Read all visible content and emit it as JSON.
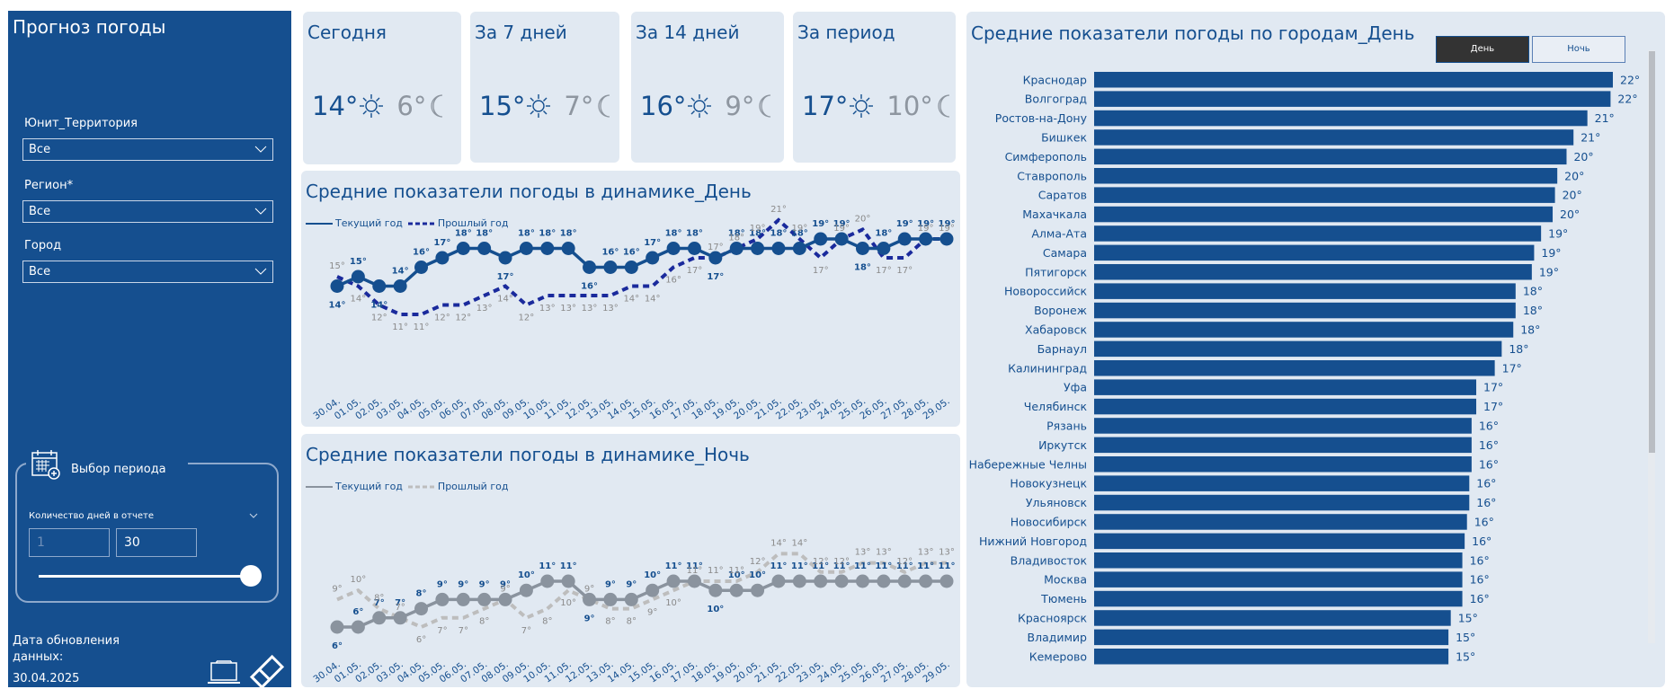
{
  "sidebar": {
    "title": "Прогноз погоды",
    "filters": [
      {
        "label": "Юнит_Территория",
        "value": "Все"
      },
      {
        "label": "Регион*",
        "value": "Все"
      },
      {
        "label": "Город",
        "value": "Все"
      }
    ],
    "period": {
      "title": "Выбор периода",
      "days_label": "Количество дней в отчете",
      "min_value": "1",
      "max_value": "30",
      "slider_position": 1.0
    },
    "update_label": "Дата обновления данных:",
    "update_date": "30.04.2025"
  },
  "kpi_cards": [
    {
      "title": "Сегодня",
      "day": "14°",
      "night": "6°"
    },
    {
      "title": "За 7 дней",
      "day": "15°",
      "night": "7°"
    },
    {
      "title": "За 14 дней",
      "day": "16°",
      "night": "9°"
    },
    {
      "title": "За период",
      "day": "17°",
      "night": "10°"
    }
  ],
  "colors": {
    "primary": "#154f8f",
    "panel": "#e1e9f2",
    "prior_day": "#1a2a9c",
    "night_current": "#8a939e",
    "night_prior": "#bdbdbd",
    "muted_label": "#8a8a8a"
  },
  "city_toggle": {
    "day_label": "День",
    "night_label": "Ночь",
    "active": "День"
  },
  "chart_data": [
    {
      "type": "line",
      "title": "Средние показатели погоды в динамике_День",
      "legend": [
        "Текущий год",
        "Прошлый год"
      ],
      "legend_position": "top-left",
      "x": [
        "30.04.",
        "01.05.",
        "02.05.",
        "03.05.",
        "04.05.",
        "05.05.",
        "06.05.",
        "07.05.",
        "08.05.",
        "09.05.",
        "10.05.",
        "11.05.",
        "12.05.",
        "13.05.",
        "14.05.",
        "15.05.",
        "16.05.",
        "17.05.",
        "18.05.",
        "19.05.",
        "20.05.",
        "21.05.",
        "22.05.",
        "23.05.",
        "24.05.",
        "25.05.",
        "26.05.",
        "27.05.",
        "28.05.",
        "29.05."
      ],
      "series": [
        {
          "name": "Текущий год",
          "style": "solid-markers",
          "values": [
            14,
            15,
            14,
            14,
            16,
            17,
            18,
            18,
            17,
            18,
            18,
            18,
            16,
            16,
            16,
            17,
            18,
            18,
            17,
            18,
            18,
            18,
            18,
            19,
            19,
            18,
            18,
            19,
            19,
            19
          ]
        },
        {
          "name": "Прошлый год",
          "style": "dashed",
          "values": [
            15,
            14,
            12,
            11,
            11,
            12,
            12,
            13,
            14,
            12,
            13,
            13,
            13,
            13,
            14,
            14,
            16,
            17,
            17,
            18,
            19,
            21,
            19,
            17,
            19,
            20,
            17,
            17,
            19,
            19
          ]
        }
      ],
      "unit": "°",
      "grid": false
    },
    {
      "type": "line",
      "title": "Средние показатели погоды в динамике_Ночь",
      "legend": [
        "Текущий год",
        "Прошлый год"
      ],
      "legend_position": "top-left",
      "x": [
        "30.04.",
        "01.05.",
        "02.05.",
        "03.05.",
        "04.05.",
        "05.05.",
        "06.05.",
        "07.05.",
        "08.05.",
        "09.05.",
        "10.05.",
        "11.05.",
        "12.05.",
        "13.05.",
        "14.05.",
        "15.05.",
        "16.05.",
        "17.05.",
        "18.05.",
        "19.05.",
        "20.05.",
        "21.05.",
        "22.05.",
        "23.05.",
        "24.05.",
        "25.05.",
        "26.05.",
        "27.05.",
        "28.05.",
        "29.05."
      ],
      "series": [
        {
          "name": "Текущий год",
          "style": "solid-markers",
          "values": [
            6,
            6,
            7,
            7,
            8,
            9,
            9,
            9,
            9,
            10,
            11,
            11,
            9,
            9,
            9,
            10,
            11,
            11,
            10,
            10,
            10,
            11,
            11,
            11,
            11,
            11,
            11,
            11,
            11,
            11
          ]
        },
        {
          "name": "Прошлый год",
          "style": "dashed",
          "values": [
            9,
            10,
            8,
            7,
            6,
            7,
            7,
            8,
            9,
            7,
            8,
            10,
            9,
            8,
            8,
            9,
            10,
            11,
            11,
            11,
            12,
            14,
            14,
            12,
            12,
            13,
            13,
            12,
            13,
            13
          ]
        }
      ],
      "unit": "°",
      "grid": false
    },
    {
      "type": "bar",
      "orientation": "horizontal",
      "title": "Средние показатели погоды по городам_День",
      "categories": [
        "Краснодар",
        "Волгоград",
        "Ростов-на-Дону",
        "Бишкек",
        "Симферополь",
        "Ставрополь",
        "Саратов",
        "Махачкала",
        "Алма-Ата",
        "Самара",
        "Пятигорск",
        "Новороссийск",
        "Воронеж",
        "Хабаровск",
        "Барнаул",
        "Калининград",
        "Уфа",
        "Челябинск",
        "Рязань",
        "Иркутск",
        "Набережные Челны",
        "Новокузнецк",
        "Ульяновск",
        "Новосибирск",
        "Нижний Новгород",
        "Владивосток",
        "Москва",
        "Тюмень",
        "Красноярск",
        "Владимир",
        "Кемерово"
      ],
      "values": [
        22.4,
        22.3,
        21.3,
        20.7,
        20.4,
        20.0,
        19.9,
        19.8,
        19.3,
        19.0,
        18.9,
        18.2,
        18.2,
        18.1,
        17.6,
        17.3,
        16.5,
        16.5,
        16.3,
        16.3,
        16.3,
        16.2,
        16.2,
        16.1,
        16.0,
        15.9,
        15.9,
        15.9,
        15.4,
        15.3,
        15.3
      ],
      "labels": [
        "22°",
        "22°",
        "21°",
        "21°",
        "20°",
        "20°",
        "20°",
        "20°",
        "19°",
        "19°",
        "19°",
        "18°",
        "18°",
        "18°",
        "18°",
        "17°",
        "17°",
        "17°",
        "16°",
        "16°",
        "16°",
        "16°",
        "16°",
        "16°",
        "16°",
        "16°",
        "16°",
        "16°",
        "15°",
        "15°",
        "15°"
      ],
      "xlim": [
        0,
        22.4
      ],
      "grid": false
    }
  ]
}
